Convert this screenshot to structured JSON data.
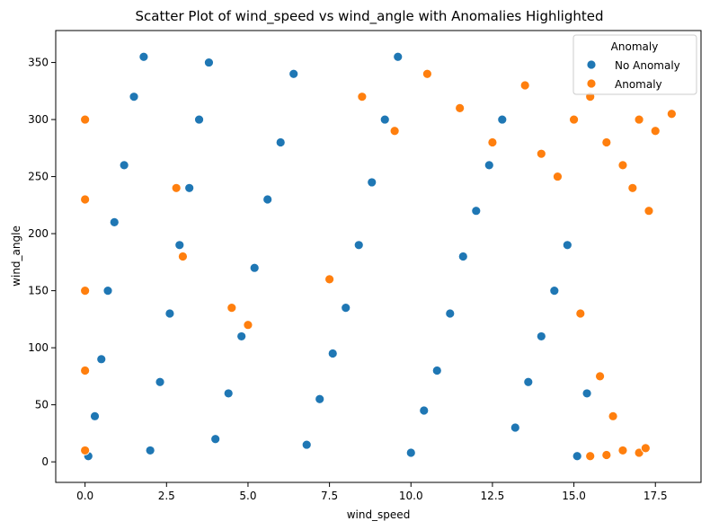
{
  "chart_data": {
    "type": "scatter",
    "title": "Scatter Plot of wind_speed vs wind_angle with Anomalies Highlighted",
    "xlabel": "wind_speed",
    "ylabel": "wind_angle",
    "xlim": [
      -0.9,
      18.9
    ],
    "ylim": [
      -18,
      378
    ],
    "xticks": [
      0.0,
      2.5,
      5.0,
      7.5,
      10.0,
      12.5,
      15.0,
      17.5
    ],
    "xtick_labels": [
      "0.0",
      "2.5",
      "5.0",
      "7.5",
      "10.0",
      "12.5",
      "15.0",
      "17.5"
    ],
    "yticks": [
      0,
      50,
      100,
      150,
      200,
      250,
      300,
      350
    ],
    "ytick_labels": [
      "0",
      "50",
      "100",
      "150",
      "200",
      "250",
      "300",
      "350"
    ],
    "grid": false,
    "legend": {
      "title": "Anomaly",
      "placement": "top-right",
      "entries": [
        "No Anomaly",
        "Anomaly"
      ]
    },
    "series": [
      {
        "name": "No Anomaly",
        "color": "#1f77b4",
        "points": [
          [
            0.1,
            5
          ],
          [
            0.3,
            40
          ],
          [
            0.5,
            90
          ],
          [
            0.7,
            150
          ],
          [
            0.9,
            210
          ],
          [
            1.2,
            260
          ],
          [
            1.5,
            320
          ],
          [
            1.8,
            355
          ],
          [
            2.0,
            10
          ],
          [
            2.3,
            70
          ],
          [
            2.6,
            130
          ],
          [
            2.9,
            190
          ],
          [
            3.2,
            240
          ],
          [
            3.5,
            300
          ],
          [
            3.8,
            350
          ],
          [
            4.0,
            20
          ],
          [
            4.4,
            60
          ],
          [
            4.8,
            110
          ],
          [
            5.2,
            170
          ],
          [
            5.6,
            230
          ],
          [
            6.0,
            280
          ],
          [
            6.4,
            340
          ],
          [
            6.8,
            15
          ],
          [
            7.2,
            55
          ],
          [
            7.6,
            95
          ],
          [
            8.0,
            135
          ],
          [
            8.4,
            190
          ],
          [
            8.8,
            245
          ],
          [
            9.2,
            300
          ],
          [
            9.6,
            355
          ],
          [
            10.0,
            8
          ],
          [
            10.4,
            45
          ],
          [
            10.8,
            80
          ],
          [
            11.2,
            130
          ],
          [
            11.6,
            180
          ],
          [
            12.0,
            220
          ],
          [
            12.4,
            260
          ],
          [
            12.8,
            300
          ],
          [
            13.2,
            30
          ],
          [
            13.6,
            70
          ],
          [
            14.0,
            110
          ],
          [
            14.4,
            150
          ],
          [
            14.8,
            190
          ],
          [
            15.1,
            5
          ],
          [
            15.4,
            60
          ]
        ]
      },
      {
        "name": "Anomaly",
        "color": "#ff7f0e",
        "points": [
          [
            0.0,
            10
          ],
          [
            0.0,
            80
          ],
          [
            0.0,
            150
          ],
          [
            0.0,
            230
          ],
          [
            0.0,
            300
          ],
          [
            2.8,
            240
          ],
          [
            3.0,
            180
          ],
          [
            4.5,
            135
          ],
          [
            5.0,
            120
          ],
          [
            7.5,
            160
          ],
          [
            8.5,
            320
          ],
          [
            9.5,
            290
          ],
          [
            10.5,
            340
          ],
          [
            11.5,
            310
          ],
          [
            12.5,
            280
          ],
          [
            13.5,
            330
          ],
          [
            14.0,
            270
          ],
          [
            14.5,
            250
          ],
          [
            15.0,
            300
          ],
          [
            15.5,
            320
          ],
          [
            16.0,
            280
          ],
          [
            16.5,
            260
          ],
          [
            17.0,
            300
          ],
          [
            17.5,
            290
          ],
          [
            18.0,
            305
          ],
          [
            17.3,
            220
          ],
          [
            16.8,
            240
          ],
          [
            16.2,
            40
          ],
          [
            15.8,
            75
          ],
          [
            15.2,
            130
          ],
          [
            16.5,
            10
          ],
          [
            17.0,
            8
          ],
          [
            17.2,
            12
          ],
          [
            15.5,
            5
          ],
          [
            16.0,
            6
          ]
        ]
      }
    ]
  }
}
